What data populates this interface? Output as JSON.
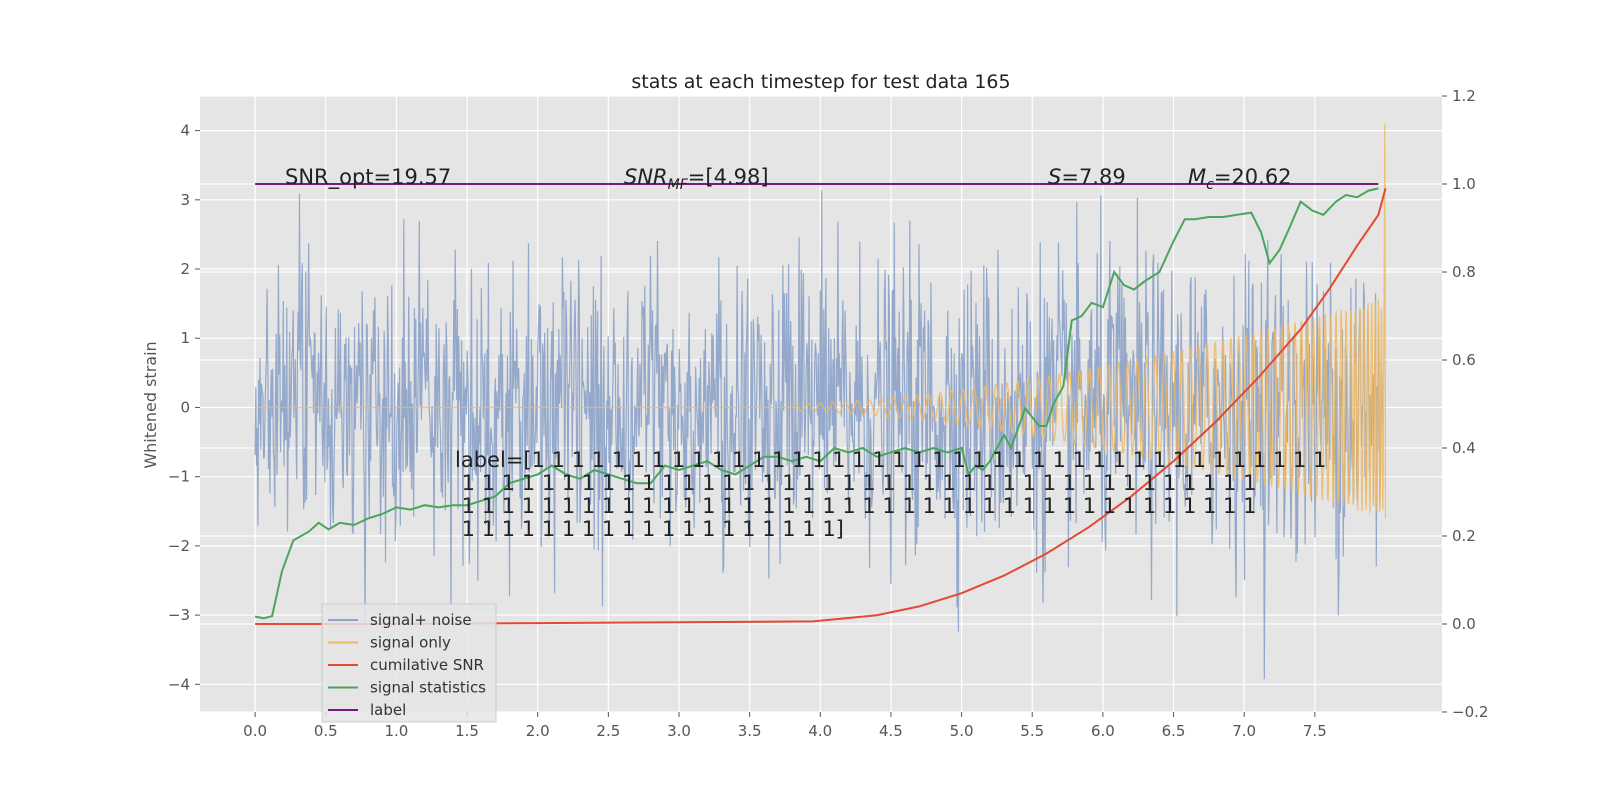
{
  "chart_data": {
    "type": "line",
    "title": "stats at each timestep for test data 165",
    "xlabel": "",
    "ylabel": "Whitened strain",
    "y2label": "",
    "xlim": [
      -0.39,
      8.4
    ],
    "ylim": [
      -4.4,
      4.5
    ],
    "y2lim": [
      -0.2,
      1.2
    ],
    "x_ticks": [
      0.0,
      0.5,
      1.0,
      1.5,
      2.0,
      2.5,
      3.0,
      3.5,
      4.0,
      4.5,
      5.0,
      5.5,
      6.0,
      6.5,
      7.0,
      7.5
    ],
    "x_tick_labels": [
      "0.0",
      "0.5",
      "1.0",
      "1.5",
      "2.0",
      "2.5",
      "3.0",
      "3.5",
      "4.0",
      "4.5",
      "5.0",
      "5.5",
      "6.0",
      "6.5",
      "7.0",
      "7.5"
    ],
    "y_ticks": [
      4,
      3,
      2,
      1,
      0,
      -1,
      -2,
      -3,
      -4
    ],
    "y_tick_labels": [
      "4",
      "3",
      "2",
      "1",
      "0",
      "−1",
      "−2",
      "−3",
      "−4"
    ],
    "y2_ticks": [
      1.2,
      1.0,
      0.8,
      0.6,
      0.4,
      0.2,
      0.0,
      -0.2
    ],
    "y2_tick_labels": [
      "1.2",
      "1.0",
      "0.8",
      "0.6",
      "0.4",
      "0.2",
      "0.0",
      "−0.2"
    ],
    "grid": true,
    "legend_position": "lower-left",
    "annotations": {
      "snr_opt": "SNR_opt=19.57",
      "snr_mf": "SNR",
      "snr_mf_sub": "MF",
      "snr_mf_val": "=[4.98]",
      "s": "S",
      "s_val": "=7.89",
      "mc": "M",
      "mc_sub": "c",
      "mc_val": "=20.62",
      "label_lines": [
        "label=[1 1 1 1 1 1 1 1 1 1 1 1 1 1 1 1 1 1 1 1 1 1 1 1 1 1 1 1 1 1 1 1 1 1 1 1 1 1 1 1",
        " 1 1 1 1 1 1 1 1 1 1 1 1 1 1 1 1 1 1 1 1 1 1 1 1 1 1 1 1 1 1 1 1 1 1 1 1 1 1 1 1",
        " 1 1 1 1 1 1 1 1 1 1 1 1 1 1 1 1 1 1 1 1 1 1 1 1 1 1 1 1 1 1 1 1 1 1 1 1 1 1 1 1",
        " 1 1 1 1 1 1 1 1 1 1 1 1 1 1 1 1 1 1 1]"
      ]
    },
    "series": [
      {
        "name": "signal+ noise",
        "axis": "left",
        "description": "white noise roughly std 1 across x 0 to 8 with amplitude envelope increasing near end",
        "noise_std": 1.0,
        "x_range": [
          0,
          8
        ]
      },
      {
        "name": "signal only",
        "axis": "left",
        "description": "chirp near zero until about x 4, then growing oscillation reaching about ±1.6 near x 8 with spike to 4.1 at 8",
        "x_range": [
          0,
          8
        ]
      },
      {
        "name": "cumilative SNR",
        "axis": "right",
        "x": [
          0.0,
          1.0,
          2.0,
          3.0,
          3.95,
          4.4,
          4.7,
          5.0,
          5.3,
          5.6,
          5.9,
          6.2,
          6.5,
          6.8,
          7.1,
          7.4,
          7.6,
          7.8,
          7.95,
          8.0
        ],
        "y": [
          0.0,
          0.0,
          0.002,
          0.004,
          0.006,
          0.02,
          0.04,
          0.07,
          0.11,
          0.16,
          0.22,
          0.29,
          0.37,
          0.46,
          0.56,
          0.67,
          0.76,
          0.86,
          0.93,
          0.99
        ]
      },
      {
        "name": "signal statistics",
        "axis": "right",
        "x": [
          0.0,
          0.06,
          0.12,
          0.19,
          0.27,
          0.38,
          0.45,
          0.52,
          0.6,
          0.7,
          0.8,
          0.9,
          1.0,
          1.1,
          1.2,
          1.3,
          1.4,
          1.5,
          1.6,
          1.7,
          1.8,
          1.9,
          2.0,
          2.1,
          2.2,
          2.3,
          2.4,
          2.5,
          2.6,
          2.7,
          2.8,
          2.9,
          3.0,
          3.1,
          3.2,
          3.3,
          3.4,
          3.5,
          3.6,
          3.7,
          3.8,
          3.9,
          4.0,
          4.1,
          4.2,
          4.3,
          4.4,
          4.5,
          4.6,
          4.7,
          4.8,
          4.9,
          5.0,
          5.05,
          5.1,
          5.15,
          5.2,
          5.3,
          5.35,
          5.45,
          5.55,
          5.6,
          5.65,
          5.72,
          5.78,
          5.85,
          5.92,
          6.0,
          6.08,
          6.15,
          6.22,
          6.3,
          6.4,
          6.5,
          6.58,
          6.65,
          6.75,
          6.85,
          6.95,
          7.05,
          7.12,
          7.18,
          7.25,
          7.32,
          7.4,
          7.48,
          7.56,
          7.65,
          7.72,
          7.8,
          7.88,
          7.95
        ],
        "y": [
          0.017,
          0.013,
          0.018,
          0.12,
          0.19,
          0.21,
          0.23,
          0.215,
          0.23,
          0.225,
          0.24,
          0.25,
          0.265,
          0.26,
          0.27,
          0.265,
          0.27,
          0.27,
          0.28,
          0.29,
          0.32,
          0.33,
          0.34,
          0.36,
          0.34,
          0.33,
          0.35,
          0.34,
          0.33,
          0.32,
          0.32,
          0.36,
          0.35,
          0.36,
          0.37,
          0.35,
          0.34,
          0.36,
          0.38,
          0.38,
          0.37,
          0.38,
          0.37,
          0.4,
          0.39,
          0.4,
          0.38,
          0.39,
          0.4,
          0.39,
          0.4,
          0.39,
          0.4,
          0.34,
          0.36,
          0.35,
          0.37,
          0.43,
          0.4,
          0.49,
          0.45,
          0.45,
          0.5,
          0.54,
          0.69,
          0.7,
          0.73,
          0.72,
          0.8,
          0.77,
          0.76,
          0.78,
          0.8,
          0.87,
          0.92,
          0.92,
          0.925,
          0.925,
          0.93,
          0.935,
          0.89,
          0.82,
          0.85,
          0.9,
          0.96,
          0.94,
          0.93,
          0.96,
          0.975,
          0.97,
          0.985,
          0.99
        ]
      },
      {
        "name": "label",
        "axis": "right",
        "x": [
          0.0,
          7.95
        ],
        "y": [
          1.0,
          1.0
        ]
      }
    ],
    "colors": {
      "signal_noise": "#8ea4c8",
      "signal_only": "#f0b860",
      "cum_snr": "#e24a33",
      "signal_stats": "#4aa55c",
      "label": "#7a1a7a",
      "plot_bg": "#e5e5e5",
      "grid": "#ffffff"
    }
  }
}
